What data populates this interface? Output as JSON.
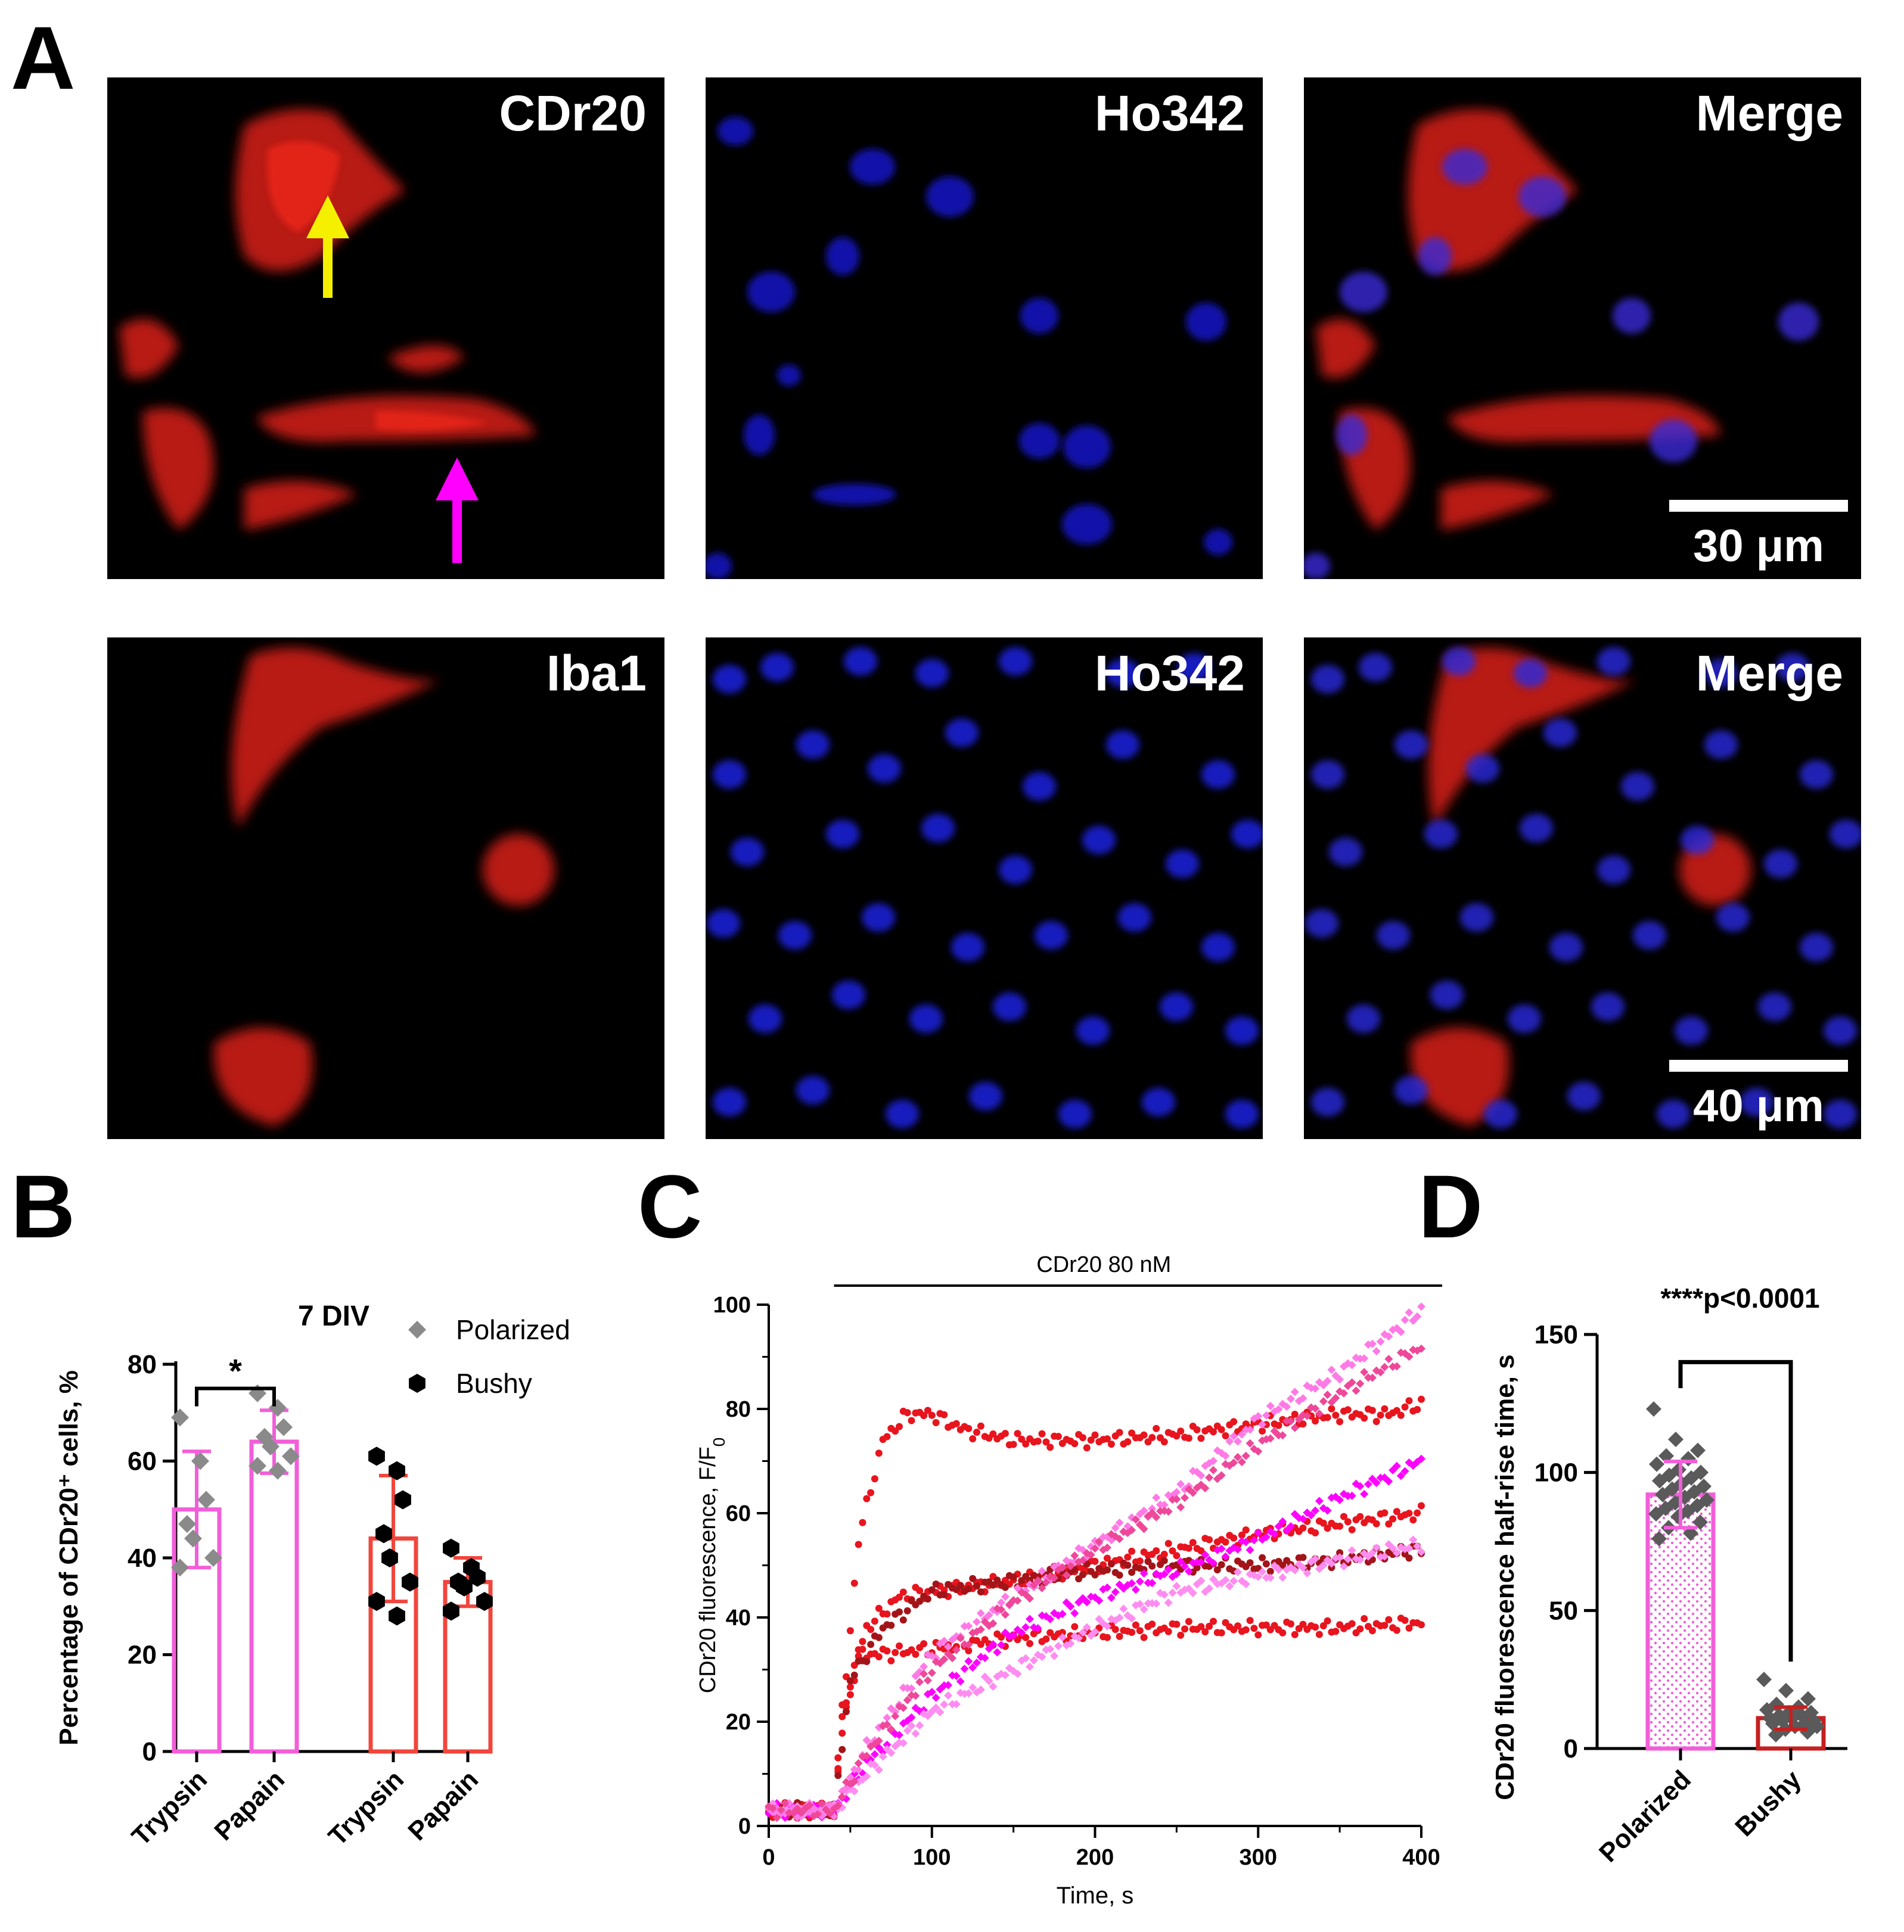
{
  "panels": {
    "A": "A",
    "B": "B",
    "C": "C",
    "D": "D"
  },
  "micrographs": {
    "top": [
      {
        "label": "CDr20"
      },
      {
        "label": "Ho342"
      },
      {
        "label": "Merge"
      }
    ],
    "bottom": [
      {
        "label": "Iba1"
      },
      {
        "label": "Ho342"
      },
      {
        "label": "Merge"
      }
    ],
    "scalebar_top": "30 μm",
    "scalebar_bottom": "40 μm",
    "arrow_colors": {
      "yellow": "#f5f000",
      "magenta": "#ff00ff"
    }
  },
  "chart_data": [
    {
      "panel": "B",
      "type": "bar",
      "title": "7 DIV",
      "ylabel": "Percentage of CDr20⁺ cells, %",
      "ylim": [
        0,
        80
      ],
      "yticks": [
        0,
        20,
        40,
        60,
        80
      ],
      "categories": [
        "Trypsin",
        "Papain",
        "Trypsin",
        "Papain"
      ],
      "legend": [
        {
          "name": "Polarized",
          "marker": "diamond",
          "color": "#8a8a8a"
        },
        {
          "name": "Bushy",
          "marker": "hexagon",
          "color": "#000000"
        }
      ],
      "legend_placement": "top-right",
      "series": [
        {
          "name": "Polarized",
          "bars": [
            {
              "category": "Trypsin",
              "mean": 50,
              "sd": 12,
              "points": [
                69,
                60,
                52,
                47,
                44,
                40,
                38
              ],
              "color": "#f25ed9"
            },
            {
              "category": "Papain",
              "mean": 64,
              "sd": 6.5,
              "points": [
                74,
                71,
                67,
                65,
                63,
                61,
                59,
                58
              ],
              "color": "#f25ed9"
            }
          ]
        },
        {
          "name": "Bushy",
          "bars": [
            {
              "category": "Trypsin",
              "mean": 44,
              "sd": 13,
              "points": [
                61,
                58,
                52,
                45,
                40,
                35,
                31,
                28
              ],
              "color": "#f0463c"
            },
            {
              "category": "Papain",
              "mean": 35,
              "sd": 5,
              "points": [
                42,
                38,
                36,
                35,
                34,
                31,
                29
              ],
              "color": "#f0463c"
            }
          ]
        }
      ],
      "significance": "*"
    },
    {
      "panel": "C",
      "type": "scatter",
      "annotation": "CDr20 80 nM",
      "xlabel": "Time, s",
      "ylabel": "CDr20 fluorescence, F/F",
      "ylabel_sub": "0",
      "xlim": [
        0,
        400
      ],
      "ylim": [
        0,
        100
      ],
      "xticks": [
        0,
        100,
        200,
        300,
        400
      ],
      "yticks": [
        0,
        20,
        40,
        60,
        80,
        100
      ],
      "treatment_start": 40,
      "series": [
        {
          "color": "#e8141e",
          "marker": "circle",
          "points": [
            [
              0,
              3
            ],
            [
              40,
              3
            ],
            [
              45,
              20
            ],
            [
              55,
              55
            ],
            [
              70,
              74
            ],
            [
              85,
              79
            ],
            [
              100,
              79
            ],
            [
              120,
              76
            ],
            [
              150,
              74
            ],
            [
              200,
              74
            ],
            [
              250,
              75
            ],
            [
              300,
              77
            ],
            [
              350,
              79
            ],
            [
              380,
              79
            ],
            [
              400,
              81
            ]
          ]
        },
        {
          "color": "#e8141e",
          "marker": "circle",
          "points": [
            [
              0,
              3
            ],
            [
              40,
              3
            ],
            [
              45,
              18
            ],
            [
              55,
              33
            ],
            [
              70,
              33
            ],
            [
              100,
              34
            ],
            [
              150,
              36
            ],
            [
              200,
              37
            ],
            [
              250,
              38
            ],
            [
              300,
              38
            ],
            [
              350,
              38
            ],
            [
              400,
              39
            ]
          ]
        },
        {
          "color": "#e8141e",
          "marker": "circle",
          "points": [
            [
              0,
              3
            ],
            [
              40,
              3
            ],
            [
              45,
              22
            ],
            [
              60,
              38
            ],
            [
              80,
              44
            ],
            [
              100,
              45
            ],
            [
              150,
              47
            ],
            [
              200,
              50
            ],
            [
              250,
              53
            ],
            [
              300,
              56
            ],
            [
              350,
              58
            ],
            [
              400,
              60
            ]
          ]
        },
        {
          "color": "#a31419",
          "marker": "circle",
          "points": [
            [
              0,
              3
            ],
            [
              40,
              3
            ],
            [
              50,
              28
            ],
            [
              70,
              38
            ],
            [
              100,
              45
            ],
            [
              150,
              47
            ],
            [
              200,
              49
            ],
            [
              250,
              50
            ],
            [
              300,
              50
            ],
            [
              350,
              51
            ],
            [
              400,
              53
            ]
          ]
        },
        {
          "color": "#ff00ff",
          "marker": "diamond",
          "points": [
            [
              0,
              3
            ],
            [
              40,
              3
            ],
            [
              60,
              12
            ],
            [
              100,
              25
            ],
            [
              150,
              37
            ],
            [
              200,
              44
            ],
            [
              250,
              49
            ],
            [
              300,
              55
            ],
            [
              350,
              63
            ],
            [
              400,
              70
            ]
          ]
        },
        {
          "color": "#ff8cf0",
          "marker": "diamond",
          "points": [
            [
              0,
              3
            ],
            [
              40,
              3
            ],
            [
              60,
              10
            ],
            [
              100,
              22
            ],
            [
              150,
              30
            ],
            [
              200,
              38
            ],
            [
              250,
              45
            ],
            [
              300,
              48
            ],
            [
              350,
              51
            ],
            [
              400,
              54
            ]
          ]
        },
        {
          "color": "#ff7ae6",
          "marker": "diamond",
          "points": [
            [
              0,
              3
            ],
            [
              40,
              3
            ],
            [
              60,
              15
            ],
            [
              100,
              33
            ],
            [
              150,
              44
            ],
            [
              200,
              54
            ],
            [
              250,
              64
            ],
            [
              300,
              78
            ],
            [
              350,
              87
            ],
            [
              400,
              99
            ]
          ]
        },
        {
          "color": "#ef4799",
          "marker": "diamond",
          "points": [
            [
              0,
              3
            ],
            [
              40,
              3
            ],
            [
              60,
              14
            ],
            [
              100,
              30
            ],
            [
              150,
              43
            ],
            [
              200,
              53
            ],
            [
              250,
              62
            ],
            [
              300,
              73
            ],
            [
              350,
              83
            ],
            [
              400,
              92
            ]
          ]
        }
      ]
    },
    {
      "panel": "D",
      "type": "bar",
      "ylabel": "CDr20 fluorescence half-rise time, s",
      "ylim": [
        0,
        150
      ],
      "yticks": [
        0,
        50,
        100,
        150
      ],
      "categories": [
        "Polarized",
        "Bushy"
      ],
      "significance": "****p<0.0001",
      "bars": [
        {
          "category": "Polarized",
          "mean": 92,
          "sd": 12,
          "fill": "dotted",
          "color": "#f25ed9",
          "errcolor": "#f25ed9",
          "points": [
            123,
            112,
            108,
            106,
            105,
            103,
            101,
            100,
            99,
            98,
            97,
            96,
            95,
            94,
            93,
            92,
            91,
            90,
            89,
            88,
            87,
            86,
            85,
            84,
            82,
            80,
            78,
            76
          ]
        },
        {
          "category": "Bushy",
          "mean": 11,
          "sd": 4,
          "fill": "white",
          "color": "#c62020",
          "errcolor": "#c62020",
          "points": [
            25,
            21,
            18,
            16,
            15,
            14,
            13,
            13,
            12,
            12,
            11,
            11,
            10,
            10,
            9,
            9,
            8,
            8,
            7,
            6,
            5
          ]
        }
      ]
    }
  ]
}
